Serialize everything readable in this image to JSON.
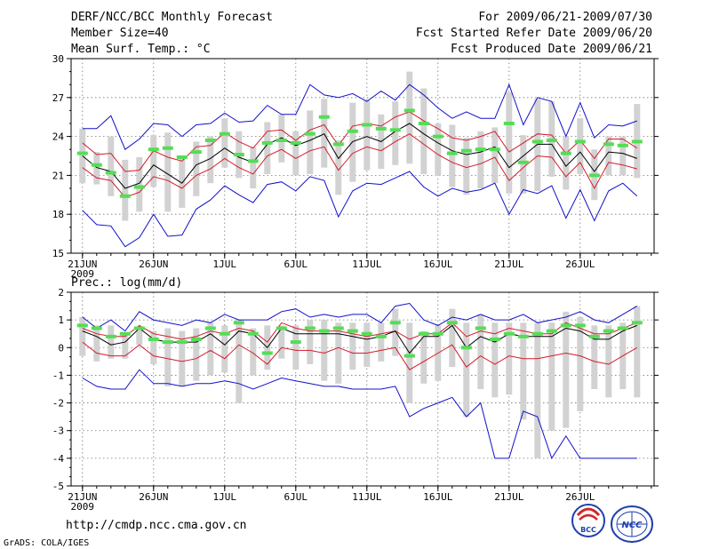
{
  "header": {
    "title": "DERF/NCC/BCC Monthly Forecast",
    "member_size": "Member Size=40",
    "variable": "Mean Surf. Temp.: °C",
    "period": "For 2009/06/21-2009/07/30",
    "refer_date": "Fcst Started Refer Date 2009/06/20",
    "produced_date": "Fcst Produced Date 2009/06/21"
  },
  "footer": {
    "url": "http://cmdp.ncc.cma.gov.cn",
    "credit": "GrADS: COLA/IGES",
    "logo_bcc": "BCC",
    "logo_ncc": "NCC"
  },
  "colors": {
    "bar": "#d2d2d2",
    "green": "#55dd55",
    "envelope": "#1010cc",
    "spread": "#d41a2a",
    "mean": "#000000"
  },
  "chart_data": [
    {
      "type": "line",
      "name": "temperature",
      "title": "Mean Surf. Temp.: °C",
      "xlabel": "",
      "ylabel": "°C",
      "ylim": [
        15,
        30
      ],
      "yticks": [
        15,
        18,
        21,
        24,
        27,
        30
      ],
      "xticks": [
        {
          "day": 1,
          "label": "21JUN",
          "sublabel": "2009"
        },
        {
          "day": 6,
          "label": "26JUN"
        },
        {
          "day": 11,
          "label": "1JUL"
        },
        {
          "day": 16,
          "label": "6JUL"
        },
        {
          "day": 21,
          "label": "11JUL"
        },
        {
          "day": 26,
          "label": "16JUL"
        },
        {
          "day": 31,
          "label": "21JUL"
        },
        {
          "day": 36,
          "label": "26JUL"
        }
      ],
      "days": [
        1,
        2,
        3,
        4,
        5,
        6,
        7,
        8,
        9,
        10,
        11,
        12,
        13,
        14,
        15,
        16,
        17,
        18,
        19,
        20,
        21,
        22,
        23,
        24,
        25,
        26,
        27,
        28,
        29,
        30,
        31,
        32,
        33,
        34,
        35,
        36,
        37,
        38,
        39,
        40
      ],
      "series": [
        {
          "name": "ensemble max",
          "values": [
            24.6,
            24.6,
            25.6,
            23.0,
            23.8,
            25.0,
            24.9,
            24.0,
            24.9,
            25.0,
            25.8,
            25.1,
            25.2,
            26.4,
            25.7,
            25.7,
            28.0,
            27.2,
            27.0,
            27.3,
            26.7,
            27.5,
            26.8,
            28.0,
            27.2,
            26.2,
            25.4,
            25.9,
            25.4,
            25.4,
            28.0,
            24.9,
            27.0,
            26.7,
            24.0,
            26.6,
            23.9,
            24.9,
            24.8,
            25.2
          ]
        },
        {
          "name": "ensemble min",
          "values": [
            18.3,
            17.2,
            17.1,
            15.5,
            16.2,
            18.0,
            16.3,
            16.4,
            18.4,
            19.1,
            20.2,
            19.5,
            18.9,
            20.3,
            20.5,
            19.8,
            20.9,
            20.6,
            17.8,
            19.8,
            20.4,
            20.3,
            20.8,
            21.3,
            20.1,
            19.4,
            20.0,
            19.7,
            19.9,
            20.4,
            18.0,
            19.9,
            19.6,
            20.2,
            17.7,
            19.9,
            17.5,
            19.8,
            20.4,
            19.4
          ]
        },
        {
          "name": "mean + spread",
          "values": [
            23.5,
            22.6,
            22.7,
            21.3,
            21.4,
            22.9,
            22.4,
            22.1,
            23.2,
            23.3,
            24.3,
            23.6,
            23.1,
            24.4,
            24.5,
            23.7,
            24.5,
            24.9,
            23.3,
            24.8,
            25.0,
            24.8,
            25.5,
            25.9,
            25.2,
            24.6,
            23.9,
            23.7,
            24.0,
            24.4,
            22.8,
            23.5,
            24.2,
            24.1,
            22.7,
            23.7,
            22.3,
            23.8,
            23.8,
            23.1
          ]
        },
        {
          "name": "ensemble mean",
          "values": [
            22.5,
            21.6,
            21.3,
            20.0,
            20.4,
            21.8,
            21.1,
            20.4,
            21.8,
            22.3,
            23.1,
            22.4,
            22.0,
            23.4,
            23.9,
            23.3,
            23.7,
            24.2,
            22.3,
            23.6,
            24.0,
            23.6,
            24.4,
            25.0,
            24.2,
            23.5,
            22.9,
            22.6,
            22.8,
            23.2,
            21.6,
            22.5,
            23.4,
            23.4,
            21.7,
            22.8,
            21.3,
            22.8,
            22.7,
            22.3
          ]
        },
        {
          "name": "mean - spread",
          "values": [
            21.6,
            20.8,
            20.6,
            19.3,
            19.7,
            20.9,
            20.6,
            20.0,
            21.0,
            21.5,
            22.3,
            21.6,
            21.1,
            22.5,
            23.0,
            22.3,
            22.9,
            23.2,
            21.4,
            22.7,
            23.2,
            22.9,
            23.6,
            24.2,
            23.4,
            22.6,
            22.0,
            21.6,
            21.9,
            22.4,
            20.6,
            21.6,
            22.5,
            22.4,
            20.9,
            22.0,
            20.0,
            22.0,
            21.8,
            21.5
          ]
        },
        {
          "name": "bar top",
          "values": [
            24.6,
            22.8,
            24.0,
            22.2,
            22.4,
            24.1,
            24.3,
            22.5,
            23.6,
            24.0,
            25.4,
            24.4,
            23.2,
            25.1,
            25.7,
            24.4,
            26.0,
            26.9,
            23.7,
            26.6,
            26.8,
            25.7,
            26.7,
            29.0,
            27.7,
            25.0,
            24.9,
            23.9,
            24.4,
            24.7,
            27.4,
            24.1,
            26.9,
            26.7,
            24.0,
            25.4,
            23.0,
            24.0,
            24.0,
            26.5
          ]
        },
        {
          "name": "bar bottom",
          "values": [
            20.4,
            20.3,
            19.4,
            17.5,
            18.2,
            20.1,
            18.2,
            18.5,
            19.4,
            20.4,
            21.6,
            20.8,
            20.0,
            21.1,
            22.0,
            21.0,
            21.1,
            21.6,
            19.5,
            20.5,
            21.4,
            21.5,
            21.8,
            21.9,
            21.1,
            21.0,
            20.1,
            19.5,
            20.0,
            20.4,
            19.6,
            19.6,
            19.8,
            20.9,
            19.9,
            21.1,
            19.1,
            21.0,
            21.0,
            20.8
          ]
        },
        {
          "name": "green marker",
          "values": [
            22.7,
            21.8,
            21.2,
            19.4,
            20.1,
            23.0,
            23.1,
            22.4,
            22.8,
            23.7,
            24.2,
            22.6,
            22.1,
            23.5,
            23.7,
            23.5,
            24.2,
            25.5,
            23.4,
            24.4,
            24.9,
            24.6,
            24.5,
            26.0,
            25.0,
            24.0,
            22.7,
            22.9,
            23.0,
            23.0,
            25.0,
            22.0,
            23.6,
            23.7,
            22.7,
            23.6,
            21.0,
            23.4,
            23.3,
            23.6
          ]
        }
      ]
    },
    {
      "type": "line",
      "name": "precipitation",
      "title": "Prec.: log(mm/d)",
      "xlabel": "",
      "ylabel": "log(mm/d)",
      "ylim": [
        -5,
        2
      ],
      "yticks": [
        -5,
        -4,
        -3,
        -2,
        -1,
        0,
        1,
        2
      ],
      "xticks": [
        {
          "day": 1,
          "label": "21JUN",
          "sublabel": "2009"
        },
        {
          "day": 6,
          "label": "26JUN"
        },
        {
          "day": 11,
          "label": "1JUL"
        },
        {
          "day": 16,
          "label": "6JUL"
        },
        {
          "day": 21,
          "label": "11JUL"
        },
        {
          "day": 26,
          "label": "16JUL"
        },
        {
          "day": 31,
          "label": "21JUL"
        },
        {
          "day": 36,
          "label": "26JUL"
        }
      ],
      "days": [
        1,
        2,
        3,
        4,
        5,
        6,
        7,
        8,
        9,
        10,
        11,
        12,
        13,
        14,
        15,
        16,
        17,
        18,
        19,
        20,
        21,
        22,
        23,
        24,
        25,
        26,
        27,
        28,
        29,
        30,
        31,
        32,
        33,
        34,
        35,
        36,
        37,
        38,
        39,
        40
      ],
      "series": [
        {
          "name": "ensemble max",
          "values": [
            1.1,
            0.7,
            1.0,
            0.6,
            1.3,
            1.0,
            0.9,
            0.8,
            1.0,
            0.9,
            1.2,
            1.0,
            1.0,
            1.0,
            1.3,
            1.4,
            1.1,
            1.2,
            1.1,
            1.2,
            1.2,
            0.9,
            1.5,
            1.6,
            1.0,
            0.8,
            1.1,
            1.0,
            1.2,
            1.0,
            1.0,
            1.2,
            0.9,
            1.0,
            1.1,
            1.3,
            1.0,
            0.9,
            1.2,
            1.5
          ]
        },
        {
          "name": "ensemble min",
          "values": [
            -1.1,
            -1.4,
            -1.5,
            -1.5,
            -0.8,
            -1.3,
            -1.3,
            -1.4,
            -1.3,
            -1.3,
            -1.2,
            -1.3,
            -1.5,
            -1.3,
            -1.1,
            -1.2,
            -1.3,
            -1.4,
            -1.4,
            -1.5,
            -1.5,
            -1.5,
            -1.4,
            -2.5,
            -2.2,
            -2.0,
            -1.8,
            -2.5,
            -2.0,
            -4.0,
            -4.0,
            -2.3,
            -2.5,
            -4.0,
            -3.2,
            -4.0,
            -4.0,
            -4.0,
            -4.0,
            -4.0
          ]
        },
        {
          "name": "mean + spread",
          "values": [
            0.7,
            0.5,
            0.4,
            0.4,
            0.8,
            0.5,
            0.4,
            0.3,
            0.4,
            0.6,
            0.5,
            0.7,
            0.6,
            0.2,
            0.9,
            0.7,
            0.6,
            0.6,
            0.6,
            0.5,
            0.4,
            0.5,
            0.6,
            0.3,
            0.5,
            0.5,
            0.9,
            0.4,
            0.6,
            0.5,
            0.7,
            0.6,
            0.5,
            0.5,
            0.9,
            0.7,
            0.5,
            0.5,
            0.7,
            0.9
          ]
        },
        {
          "name": "ensemble mean",
          "values": [
            0.6,
            0.4,
            0.1,
            0.2,
            0.7,
            0.3,
            0.2,
            0.2,
            0.2,
            0.5,
            0.1,
            0.6,
            0.5,
            0.0,
            0.7,
            0.5,
            0.5,
            0.5,
            0.5,
            0.4,
            0.3,
            0.4,
            0.6,
            -0.2,
            0.4,
            0.4,
            0.8,
            0.0,
            0.4,
            0.2,
            0.5,
            0.4,
            0.4,
            0.4,
            0.7,
            0.6,
            0.3,
            0.3,
            0.6,
            0.8
          ]
        },
        {
          "name": "mean - spread",
          "values": [
            0.2,
            -0.2,
            -0.3,
            -0.3,
            0.1,
            -0.3,
            -0.4,
            -0.5,
            -0.4,
            -0.1,
            -0.4,
            0.1,
            -0.2,
            -0.6,
            0.0,
            -0.1,
            -0.1,
            -0.2,
            0.0,
            -0.2,
            -0.2,
            -0.1,
            0.0,
            -0.8,
            -0.5,
            -0.2,
            0.1,
            -0.7,
            -0.3,
            -0.6,
            -0.3,
            -0.4,
            -0.4,
            -0.3,
            -0.2,
            -0.3,
            -0.5,
            -0.6,
            -0.3,
            0.0
          ]
        },
        {
          "name": "bar top",
          "values": [
            1.1,
            0.8,
            0.8,
            0.5,
            0.7,
            0.6,
            0.7,
            0.6,
            0.7,
            0.9,
            0.8,
            1.0,
            0.7,
            0.8,
            0.8,
            0.8,
            1.0,
            1.0,
            0.9,
            0.9,
            0.9,
            0.9,
            1.4,
            0.9,
            0.6,
            0.8,
            1.4,
            0.9,
            1.2,
            0.9,
            0.9,
            0.9,
            0.9,
            0.9,
            1.3,
            1.1,
            0.8,
            0.8,
            0.9,
            1.5
          ]
        },
        {
          "name": "bar bottom",
          "values": [
            -0.3,
            -0.5,
            -0.4,
            -0.4,
            0.1,
            -0.6,
            -1.4,
            -1.4,
            -1.2,
            -1.0,
            -0.9,
            -2.0,
            -1.0,
            -0.8,
            -0.4,
            -0.8,
            -0.6,
            -1.2,
            -1.3,
            -0.8,
            -0.7,
            -0.5,
            -0.3,
            -2.0,
            -1.3,
            -1.2,
            -0.7,
            -2.5,
            -1.5,
            -1.8,
            -1.7,
            -2.6,
            -4.0,
            -3.0,
            -2.9,
            -2.3,
            -1.5,
            -1.8,
            -1.5,
            -1.8
          ]
        },
        {
          "name": "green marker",
          "values": [
            0.8,
            0.7,
            0.4,
            0.5,
            0.7,
            0.3,
            0.2,
            0.2,
            0.3,
            0.7,
            0.5,
            0.9,
            0.5,
            -0.2,
            0.7,
            0.2,
            0.7,
            0.6,
            0.7,
            0.6,
            0.5,
            0.4,
            0.9,
            -0.3,
            0.5,
            0.5,
            0.9,
            0.0,
            0.7,
            0.3,
            0.5,
            0.4,
            0.5,
            0.6,
            0.8,
            0.8,
            0.4,
            0.6,
            0.7,
            0.9
          ]
        }
      ]
    }
  ]
}
